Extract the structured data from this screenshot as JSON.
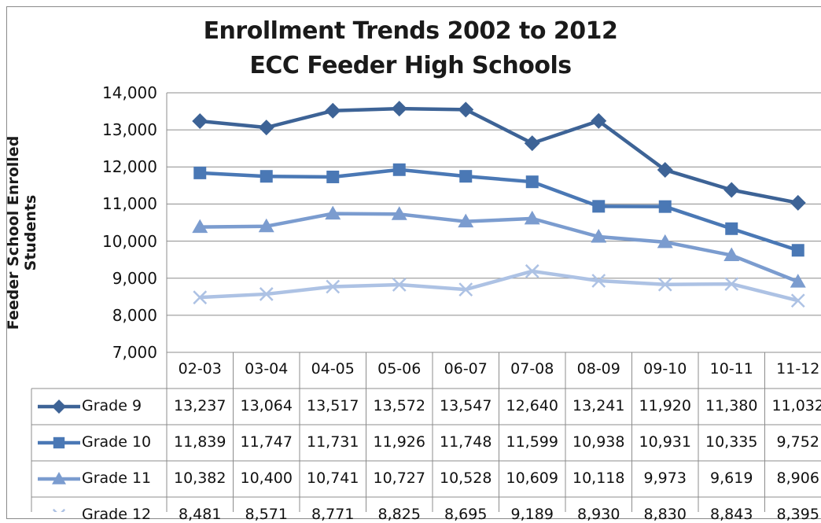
{
  "chart_data": {
    "type": "line",
    "title": "Enrollment Trends 2002 to 2012",
    "subtitle": "ECC Feeder High Schools",
    "ylabel": "Feeder School Enrolled Students",
    "xlabel": "",
    "ylim": [
      7000,
      14000
    ],
    "yticks": [
      "14,000",
      "13,000",
      "12,000",
      "11,000",
      "10,000",
      "9,000",
      "8,000",
      "7,000"
    ],
    "grid": true,
    "legend": "data-table",
    "categories": [
      "02-03",
      "03-04",
      "04-05",
      "05-06",
      "06-07",
      "07-08",
      "08-09",
      "09-10",
      "10-11",
      "11-12"
    ],
    "series": [
      {
        "name": "Grade 9",
        "color": "#3d6396",
        "marker": "diamond",
        "values": [
          13237,
          13064,
          13517,
          13572,
          13547,
          12640,
          13241,
          11920,
          11380,
          11032
        ],
        "labels": [
          "13,237",
          "13,064",
          "13,517",
          "13,572",
          "13,547",
          "12,640",
          "13,241",
          "11,920",
          "11,380",
          "11,032"
        ]
      },
      {
        "name": "Grade 10",
        "color": "#4a78b5",
        "marker": "square",
        "values": [
          11839,
          11747,
          11731,
          11926,
          11748,
          11599,
          10938,
          10931,
          10335,
          9752
        ],
        "labels": [
          "11,839",
          "11,747",
          "11,731",
          "11,926",
          "11,748",
          "11,599",
          "10,938",
          "10,931",
          "10,335",
          "9,752"
        ]
      },
      {
        "name": "Grade 11",
        "color": "#7b9ccf",
        "marker": "triangle",
        "values": [
          10382,
          10400,
          10741,
          10727,
          10528,
          10609,
          10118,
          9973,
          9619,
          8906
        ],
        "labels": [
          "10,382",
          "10,400",
          "10,741",
          "10,727",
          "10,528",
          "10,609",
          "10,118",
          "9,973",
          "9,619",
          "8,906"
        ]
      },
      {
        "name": "Grade 12",
        "color": "#adc2e4",
        "marker": "x",
        "values": [
          8481,
          8571,
          8771,
          8825,
          8695,
          9189,
          8930,
          8830,
          8843,
          8395
        ],
        "labels": [
          "8,481",
          "8,571",
          "8,771",
          "8,825",
          "8,695",
          "9,189",
          "8,930",
          "8,830",
          "8,843",
          "8,395"
        ]
      }
    ]
  }
}
